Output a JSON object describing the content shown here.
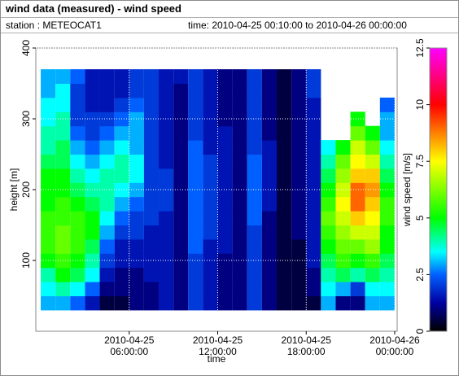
{
  "header": {
    "title": "wind data (measured) - wind speed",
    "station": "station : METEOCAT1",
    "time": "time: 2010-04-25 00:10:00 to 2010-04-26 00:00:00"
  },
  "chart_data": {
    "type": "heatmap",
    "x_label": "time",
    "y_label": "height [m]",
    "colorbar_label": "wind speed [m/s]",
    "xlim": [
      "2010-04-24 23:40:00",
      "2010-04-26 00:10:00"
    ],
    "xticks": [
      "2010-04-25 06:00:00",
      "2010-04-25 12:00:00",
      "2010-04-25 18:00:00",
      "2010-04-26 00:00:00"
    ],
    "ylim": [
      0,
      400
    ],
    "yticks": [
      100,
      200,
      300,
      400
    ],
    "zlim": [
      0,
      12.5
    ],
    "zticks": [
      0,
      2.5,
      5,
      7.5,
      10,
      12.5
    ],
    "grid": true,
    "colorscale": [
      [
        0,
        "#000000"
      ],
      [
        1.25,
        "#0000a0"
      ],
      [
        2.5,
        "#0060ff"
      ],
      [
        3.5,
        "#00ffff"
      ],
      [
        5,
        "#00ff00"
      ],
      [
        7.5,
        "#ffff00"
      ],
      [
        10,
        "#ff0000"
      ],
      [
        12.5,
        "#ff00ff"
      ]
    ],
    "x": [
      "2010-04-25 00:30:00",
      "2010-04-25 01:30:00",
      "2010-04-25 02:30:00",
      "2010-04-25 03:30:00",
      "2010-04-25 04:30:00",
      "2010-04-25 05:30:00",
      "2010-04-25 06:30:00",
      "2010-04-25 07:30:00",
      "2010-04-25 08:30:00",
      "2010-04-25 09:30:00",
      "2010-04-25 10:30:00",
      "2010-04-25 11:30:00",
      "2010-04-25 12:30:00",
      "2010-04-25 13:30:00",
      "2010-04-25 14:30:00",
      "2010-04-25 15:30:00",
      "2010-04-25 16:30:00",
      "2010-04-25 17:30:00",
      "2010-04-25 18:30:00",
      "2010-04-25 19:30:00",
      "2010-04-25 20:30:00",
      "2010-04-25 21:30:00",
      "2010-04-25 22:30:00",
      "2010-04-25 23:30:00"
    ],
    "y": [
      40,
      60,
      80,
      100,
      120,
      140,
      160,
      180,
      200,
      220,
      240,
      260,
      280,
      300,
      320,
      340,
      360
    ],
    "values": [
      [
        3,
        3.5,
        4,
        5,
        5.5,
        5.5,
        5.5,
        5,
        5,
        5,
        4.5,
        4,
        4,
        3.5,
        3.5,
        3,
        3
      ],
      [
        3,
        4,
        5,
        5.5,
        6,
        6,
        5.5,
        5.5,
        5,
        5,
        4.5,
        4.5,
        4,
        4,
        3.5,
        3.5,
        3
      ],
      [
        2.5,
        3.5,
        4.5,
        5,
        5.5,
        5.5,
        5.5,
        5,
        4.5,
        4,
        3.5,
        3,
        2.5,
        2,
        2,
        2,
        2.5
      ],
      [
        1.5,
        2.5,
        3.5,
        4,
        4.5,
        5,
        5,
        4.5,
        4,
        3.5,
        3,
        2.5,
        2,
        2,
        1.5,
        1.5,
        1.5
      ],
      [
        0.5,
        1,
        1.5,
        2,
        2.5,
        3,
        3.5,
        4,
        4,
        4,
        3.5,
        3,
        2.5,
        2,
        1.5,
        1.5,
        1.5
      ],
      [
        0.5,
        1,
        1,
        1.5,
        1.5,
        2,
        2.5,
        3,
        3.5,
        4,
        4,
        3.5,
        3,
        2.5,
        2,
        1.5,
        1.5
      ],
      [
        1,
        1,
        1,
        1.5,
        1.5,
        2,
        2,
        2.5,
        3,
        3.5,
        3.5,
        3,
        3,
        3,
        2.5,
        2,
        2
      ],
      [
        1,
        1,
        1.5,
        1.5,
        1.5,
        1.5,
        2,
        2,
        2,
        2,
        2,
        2,
        2,
        2,
        2,
        2,
        2
      ],
      [
        1.5,
        1.5,
        1.5,
        1.5,
        1.5,
        1.5,
        1.5,
        2,
        2,
        2,
        1.5,
        1.5,
        1.5,
        1.5,
        1.5,
        1.5,
        1.5
      ],
      [
        1,
        1,
        1,
        1,
        1,
        1,
        1,
        1,
        1,
        1,
        1,
        1,
        1,
        1,
        1,
        1,
        1.5
      ],
      [
        2,
        2,
        2,
        2,
        2.5,
        2.5,
        2.5,
        2.5,
        2.5,
        2.5,
        2.5,
        2.5,
        2,
        2,
        2,
        2,
        2
      ],
      [
        1.5,
        1.5,
        1.5,
        1.5,
        1.5,
        2,
        2,
        2,
        2,
        2,
        2,
        1.5,
        1.5,
        1.5,
        1.5,
        1.5,
        1.5
      ],
      [
        1,
        1,
        1,
        1,
        1.5,
        1.5,
        1.5,
        1.5,
        1.5,
        1.5,
        1.5,
        1.5,
        1.5,
        1,
        1,
        1,
        1
      ],
      [
        1,
        1,
        1,
        1,
        1,
        1,
        1,
        1,
        1,
        1,
        1,
        1,
        1,
        1,
        1,
        1,
        1
      ],
      [
        2,
        2,
        2,
        2,
        2,
        2,
        2.5,
        2.5,
        2.5,
        2.5,
        2.5,
        2,
        2,
        2,
        2,
        2,
        2
      ],
      [
        1,
        1,
        1,
        1,
        1,
        1,
        1,
        1.5,
        1.5,
        1.5,
        1.5,
        1.5,
        1,
        1,
        1,
        1,
        1
      ],
      [
        0.5,
        0.5,
        0.5,
        0.5,
        0.5,
        0.5,
        0.5,
        0.5,
        0.5,
        0.5,
        0.5,
        0.5,
        0.5,
        0.5,
        0.5,
        0.5,
        0.5
      ],
      [
        0.5,
        0.5,
        0.5,
        0.5,
        0.5,
        1,
        1,
        1,
        1,
        1,
        1,
        1,
        1,
        1,
        1,
        1,
        1
      ],
      [
        0.5,
        1,
        1,
        1.5,
        1.5,
        1.5,
        1.5,
        1.5,
        1.5,
        1.5,
        1.5,
        1.5,
        1.5,
        1.5,
        1.5,
        2,
        2
      ],
      [
        3,
        3.5,
        4,
        4.5,
        5,
        5.5,
        6,
        5.5,
        5,
        4.5,
        4,
        3.5,
        null,
        null,
        null,
        null,
        null
      ],
      [
        1,
        3,
        4.5,
        5.5,
        6,
        6.5,
        7,
        7.5,
        7,
        6.5,
        6,
        5,
        null,
        null,
        null,
        null,
        null
      ],
      [
        1,
        2,
        4,
        5,
        6,
        7,
        8,
        9,
        9,
        8,
        7.5,
        7,
        6,
        5,
        null,
        null,
        null
      ],
      [
        3,
        3.5,
        4.5,
        5.5,
        6.5,
        7,
        7.5,
        8,
        8.5,
        8,
        7,
        6,
        5,
        null,
        null,
        null,
        null
      ],
      [
        3,
        3.5,
        4,
        4.5,
        5,
        5,
        5.5,
        5.5,
        5,
        4.5,
        4,
        3.5,
        3,
        3,
        2.5,
        null,
        null
      ]
    ]
  }
}
